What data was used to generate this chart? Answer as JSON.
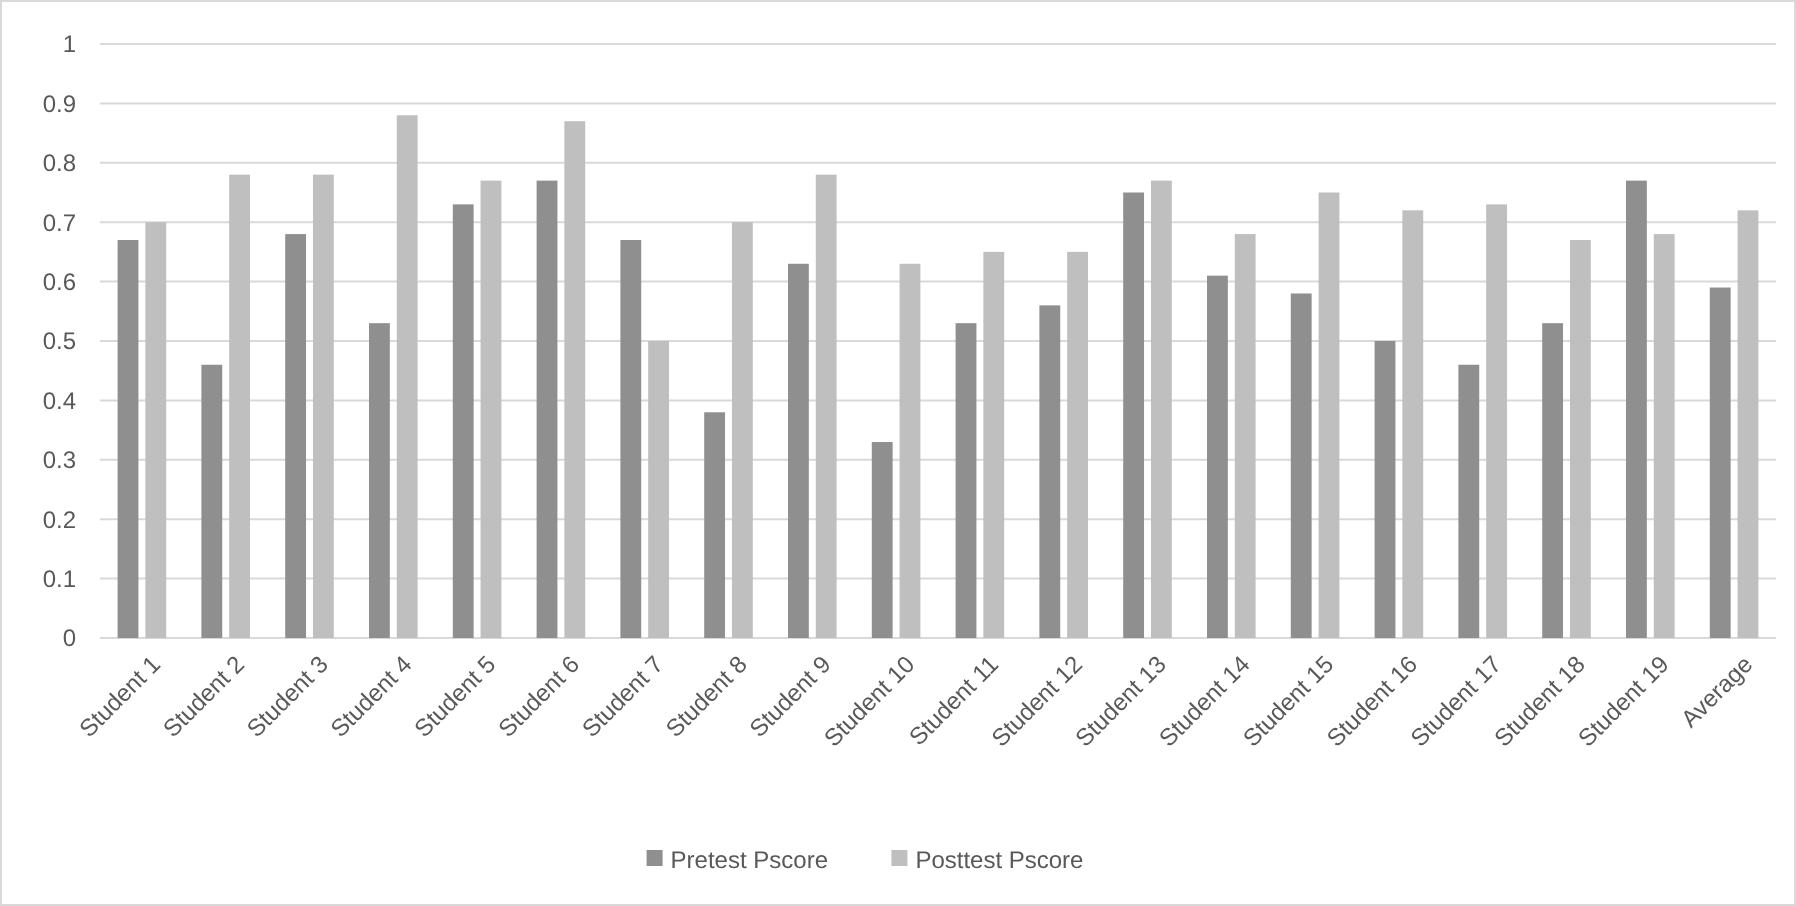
{
  "chart_data": {
    "type": "bar",
    "categories": [
      "Student 1",
      "Student 2",
      "Student 3",
      "Student 4",
      "Student 5",
      "Student 6",
      "Student 7",
      "Student 8",
      "Student 9",
      "Student 10",
      "Student 11",
      "Student 12",
      "Student 13",
      "Student 14",
      "Student 15",
      "Student 16",
      "Student 17",
      "Student 18",
      "Student 19",
      "Average"
    ],
    "series": [
      {
        "name": "Pretest Pscore",
        "color": "#8f8f8f",
        "values": [
          0.67,
          0.46,
          0.68,
          0.53,
          0.73,
          0.77,
          0.67,
          0.38,
          0.63,
          0.33,
          0.53,
          0.56,
          0.75,
          0.61,
          0.58,
          0.5,
          0.46,
          0.53,
          0.77,
          0.59
        ]
      },
      {
        "name": "Posttest Pscore",
        "color": "#bfbfbf",
        "values": [
          0.7,
          0.78,
          0.78,
          0.88,
          0.77,
          0.87,
          0.5,
          0.7,
          0.78,
          0.63,
          0.65,
          0.65,
          0.77,
          0.68,
          0.75,
          0.72,
          0.73,
          0.67,
          0.68,
          0.72
        ]
      }
    ],
    "ylim": [
      0,
      1
    ],
    "yticks": [
      0,
      {
        "value": 0.1,
        "label": "0.1"
      },
      {
        "value": 0.2,
        "label": "0.2"
      },
      {
        "value": 0.3,
        "label": "0.3"
      },
      {
        "value": 0.4,
        "label": "0.4"
      },
      {
        "value": 0.5,
        "label": "0.5"
      },
      {
        "value": 0.6,
        "label": "0.6"
      },
      {
        "value": 0.7,
        "label": "0.7"
      },
      {
        "value": 0.8,
        "label": "0.8"
      },
      {
        "value": 0.9,
        "label": "0.9"
      },
      1
    ],
    "grid": "y",
    "legend": "bottom"
  }
}
